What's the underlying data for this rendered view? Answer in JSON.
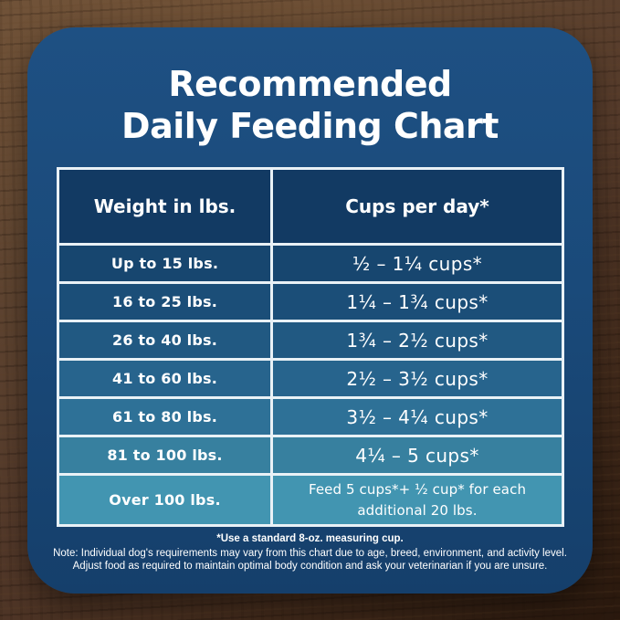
{
  "title": {
    "line1": "Recommended",
    "line2": "Daily Feeding Chart"
  },
  "chart_data": {
    "type": "table",
    "title": "Recommended Daily Feeding Chart",
    "columns": [
      "Weight in lbs.",
      "Cups per day*"
    ],
    "rows": [
      [
        "Up to 15 lbs.",
        "½ – 1¼ cups*"
      ],
      [
        "16 to 25 lbs.",
        "1¼ – 1¾ cups*"
      ],
      [
        "26 to 40 lbs.",
        "1¾ – 2½ cups*"
      ],
      [
        "41 to 60 lbs.",
        "2½ – 3½ cups*"
      ],
      [
        "61 to 80 lbs.",
        "3½ – 4¼ cups*"
      ],
      [
        "81 to 100 lbs.",
        "4¼ – 5 cups*"
      ],
      [
        "Over 100 lbs.",
        "Feed 5 cups*+ ½ cup* for each additional 20 lbs."
      ]
    ]
  },
  "footnotes": {
    "measuring_cup": "*Use a standard 8-oz. measuring cup.",
    "note_line1": "Note: Individual dog's requirements may vary from this chart due to age, breed, environment, and activity level.",
    "note_line2": "Adjust food as required to maintain optimal body condition and ask your veterinarian if you are unsure."
  },
  "colors": {
    "card_navy": "#1a4a7a",
    "header_cell": "#123a63",
    "row_backgrounds": [
      "#17466f",
      "#1b4e78",
      "#215982",
      "#27648d",
      "#2e7197",
      "#37809f",
      "#4295b1"
    ],
    "table_border": "#e9f1f6",
    "text": "#ffffff",
    "wood_brown": "#53392a"
  }
}
